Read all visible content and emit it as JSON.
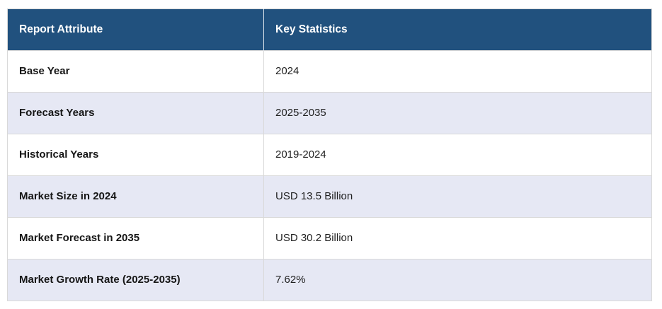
{
  "table": {
    "headers": [
      {
        "label": "Report Attribute"
      },
      {
        "label": "Key Statistics"
      }
    ],
    "rows": [
      {
        "attribute": "Base Year",
        "value": "2024"
      },
      {
        "attribute": "Forecast Years",
        "value": "2025-2035"
      },
      {
        "attribute": "Historical Years",
        "value": "2019-2024"
      },
      {
        "attribute": "Market Size in 2024",
        "value": "USD 13.5 Billion"
      },
      {
        "attribute": "Market Forecast in 2035",
        "value": "USD 30.2 Billion"
      },
      {
        "attribute": "Market Growth Rate (2025-2035)",
        "value": "7.62%"
      }
    ]
  },
  "colors": {
    "header_bg": "#21517E",
    "header_text": "#FFFFFF",
    "row_bg": "#FFFFFF",
    "row_alt_bg": "#E6E8F4",
    "border": "#D9D9D9",
    "text": "#1A1A1A"
  }
}
